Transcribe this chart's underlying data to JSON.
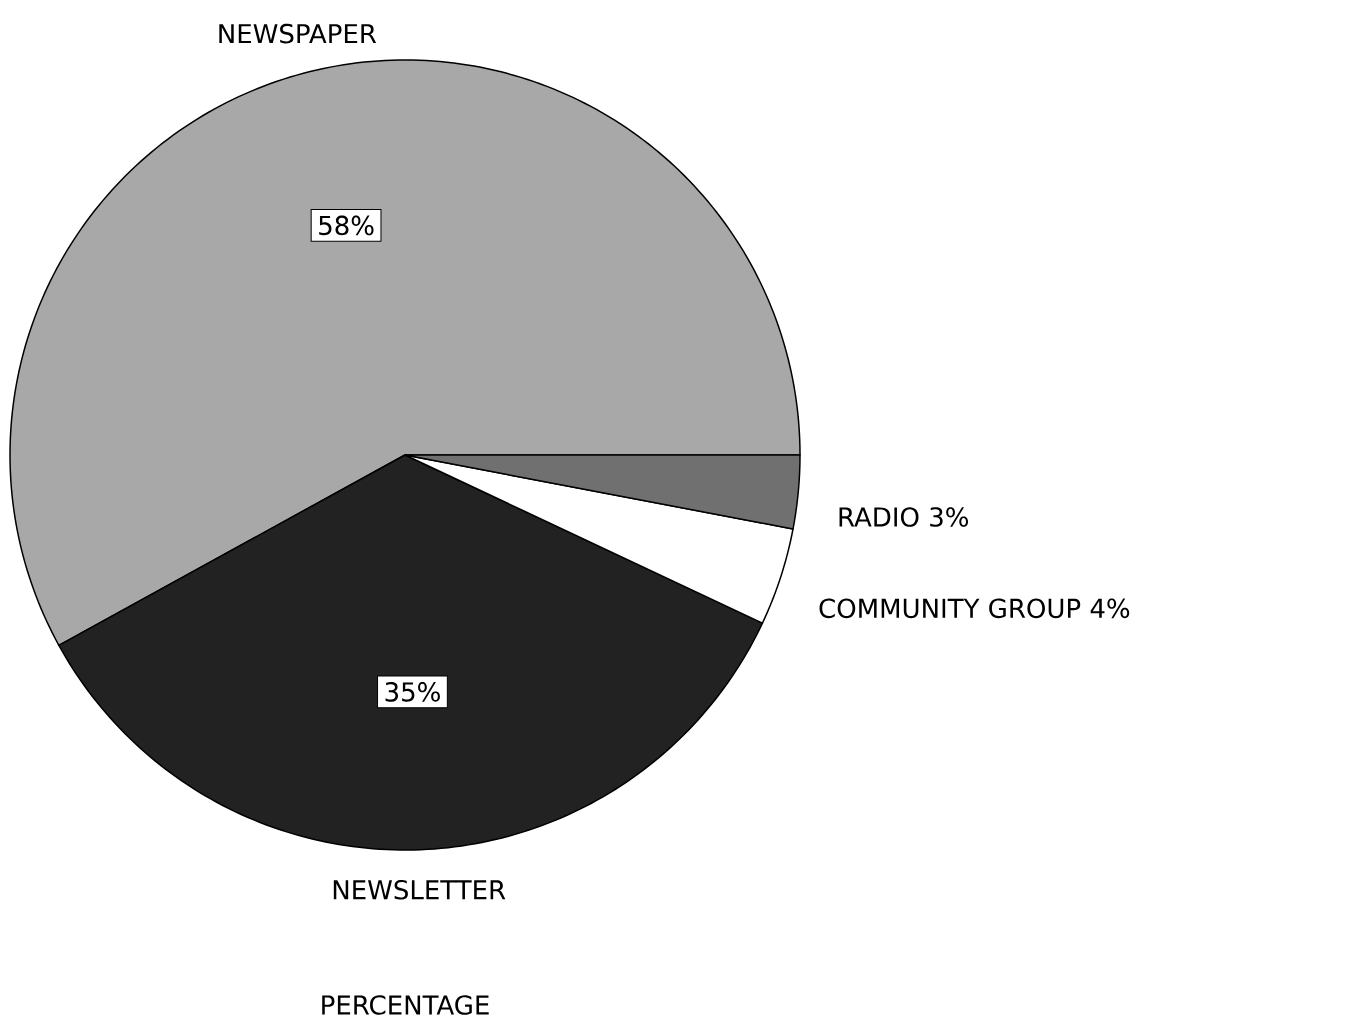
{
  "chart_data": {
    "type": "pie",
    "title": "PERCENTAGE",
    "categories": [
      "NEWSPAPER",
      "NEWSLETTER",
      "COMMUNITY GROUP",
      "RADIO"
    ],
    "values": [
      58,
      35,
      4,
      3
    ],
    "value_labels": [
      "58%",
      "35%",
      "4%",
      "3%"
    ],
    "colors": [
      "#a8a8a8",
      "#222222",
      "#ffffff",
      "#707070"
    ]
  }
}
